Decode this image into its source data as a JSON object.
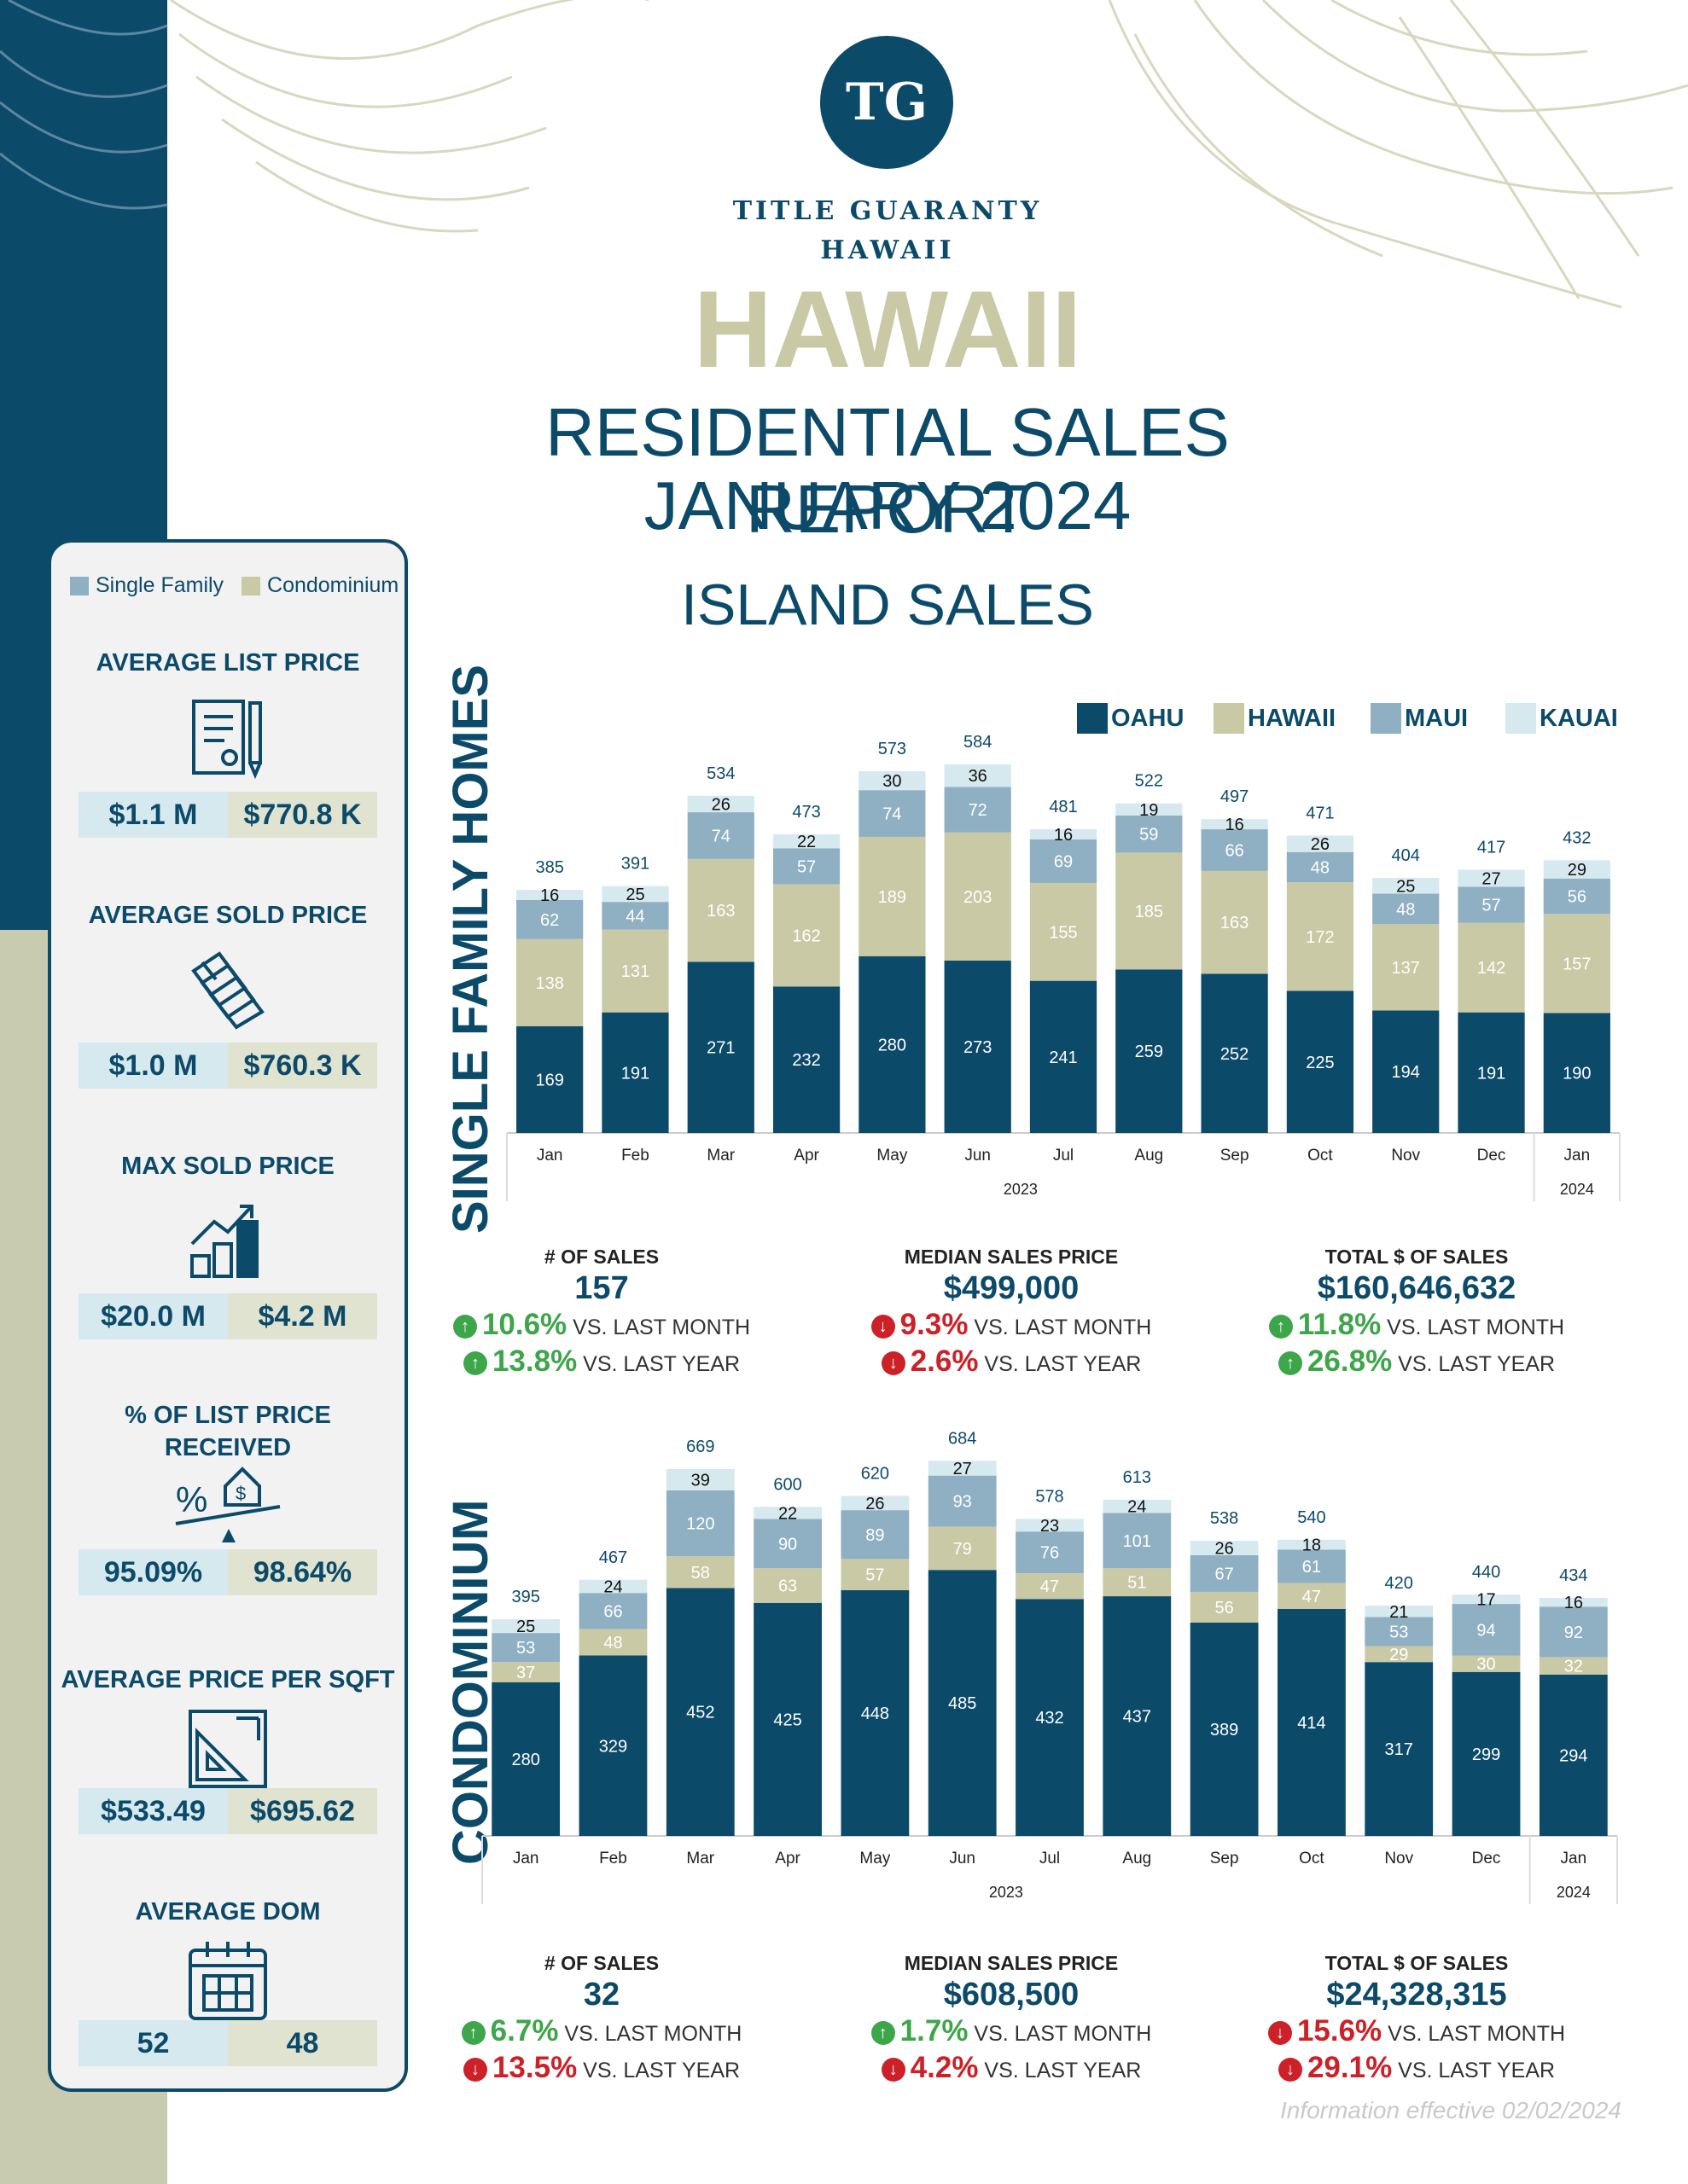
{
  "brand": {
    "logo_text": "TG",
    "line1": "TITLE GUARANTY",
    "line2": "HAWAII"
  },
  "title": "HAWAII",
  "subtitle1": "RESIDENTIAL SALES REPORT",
  "subtitle2": "JANUARY 2024",
  "section_title": "ISLAND SALES",
  "colors": {
    "oahu": "#0c4a6a",
    "hawaii": "#c9c9a6",
    "maui": "#8fb0c3",
    "kauai": "#d6e9ef",
    "single_family": "#8fb0c3",
    "condominium": "#c9c9a6",
    "up": "#3ea64a",
    "down": "#cc2128"
  },
  "sidebar": {
    "legend": [
      "Single Family",
      "Condominium"
    ],
    "metrics": [
      {
        "title": "AVERAGE LIST PRICE",
        "icon": "document-pen-icon",
        "sf": "$1.1 M",
        "condo": "$770.8 K"
      },
      {
        "title": "AVERAGE SOLD PRICE",
        "icon": "money-stack-icon",
        "sf": "$1.0 M",
        "condo": "$760.3 K"
      },
      {
        "title": "MAX SOLD PRICE",
        "icon": "bar-growth-icon",
        "sf": "$20.0 M",
        "condo": "$4.2 M"
      },
      {
        "title": "% OF LIST PRICE RECEIVED",
        "icon": "scale-house-icon",
        "sf": "95.09%",
        "condo": "98.64%"
      },
      {
        "title": "AVERAGE PRICE PER SQFT",
        "icon": "blueprint-ruler-icon",
        "sf": "$533.49",
        "condo": "$695.62"
      },
      {
        "title": "AVERAGE DOM",
        "icon": "calendar-icon",
        "sf": "52",
        "condo": "48"
      }
    ]
  },
  "chart_legend": [
    "OAHU",
    "HAWAII",
    "MAUI",
    "KAUAI"
  ],
  "chart_data": [
    {
      "type": "bar",
      "stacked": true,
      "title": "SINGLE FAMILY HOMES",
      "categories": [
        "Jan",
        "Feb",
        "Mar",
        "Apr",
        "May",
        "Jun",
        "Jul",
        "Aug",
        "Sep",
        "Oct",
        "Nov",
        "Dec",
        "Jan"
      ],
      "year_groups": [
        {
          "label": "2023",
          "count": 12
        },
        {
          "label": "2024",
          "count": 1
        }
      ],
      "series": [
        {
          "name": "OAHU",
          "values": [
            169,
            191,
            271,
            232,
            280,
            273,
            241,
            259,
            252,
            225,
            194,
            191,
            190
          ]
        },
        {
          "name": "HAWAII",
          "values": [
            138,
            131,
            163,
            162,
            189,
            203,
            155,
            185,
            163,
            172,
            137,
            142,
            157
          ]
        },
        {
          "name": "MAUI",
          "values": [
            62,
            44,
            74,
            57,
            74,
            72,
            69,
            59,
            66,
            48,
            48,
            57,
            56
          ]
        },
        {
          "name": "KAUAI",
          "values": [
            16,
            25,
            26,
            22,
            30,
            36,
            16,
            19,
            16,
            26,
            25,
            27,
            29
          ]
        }
      ],
      "totals": [
        385,
        391,
        534,
        473,
        573,
        584,
        481,
        522,
        497,
        471,
        404,
        417,
        432
      ],
      "ylim": [
        0,
        600
      ]
    },
    {
      "type": "bar",
      "stacked": true,
      "title": "CONDOMINIUM",
      "categories": [
        "Jan",
        "Feb",
        "Mar",
        "Apr",
        "May",
        "Jun",
        "Jul",
        "Aug",
        "Sep",
        "Oct",
        "Nov",
        "Dec",
        "Jan"
      ],
      "year_groups": [
        {
          "label": "2023",
          "count": 12
        },
        {
          "label": "2024",
          "count": 1
        }
      ],
      "series": [
        {
          "name": "OAHU",
          "values": [
            280,
            329,
            452,
            425,
            448,
            485,
            432,
            437,
            389,
            414,
            317,
            299,
            294
          ]
        },
        {
          "name": "HAWAII",
          "values": [
            37,
            48,
            58,
            63,
            57,
            79,
            47,
            51,
            56,
            47,
            29,
            30,
            32
          ]
        },
        {
          "name": "MAUI",
          "values": [
            53,
            66,
            120,
            90,
            89,
            93,
            76,
            101,
            67,
            61,
            53,
            94,
            92
          ]
        },
        {
          "name": "KAUAI",
          "values": [
            25,
            24,
            39,
            22,
            26,
            27,
            23,
            24,
            26,
            18,
            21,
            17,
            16
          ]
        }
      ],
      "totals": [
        395,
        467,
        669,
        600,
        620,
        684,
        578,
        613,
        538,
        540,
        420,
        440,
        434
      ],
      "ylim": [
        0,
        700
      ]
    }
  ],
  "sf_stats": [
    {
      "label": "# OF SALES",
      "value": "157",
      "month_pct": "10.6%",
      "month_dir": "up",
      "month_text": "VS. LAST MONTH",
      "year_pct": "13.8%",
      "year_dir": "up",
      "year_text": "VS. LAST YEAR"
    },
    {
      "label": "MEDIAN SALES PRICE",
      "value": "$499,000",
      "month_pct": "9.3%",
      "month_dir": "down",
      "month_text": "VS. LAST MONTH",
      "year_pct": "2.6%",
      "year_dir": "down",
      "year_text": "VS. LAST YEAR"
    },
    {
      "label": "TOTAL $ OF SALES",
      "value": "$160,646,632",
      "month_pct": "11.8%",
      "month_dir": "up",
      "month_text": "VS. LAST MONTH",
      "year_pct": "26.8%",
      "year_dir": "up",
      "year_text": "VS. LAST YEAR"
    }
  ],
  "condo_stats": [
    {
      "label": "# OF SALES",
      "value": "32",
      "month_pct": "6.7%",
      "month_dir": "up",
      "month_text": "VS. LAST MONTH",
      "year_pct": "13.5%",
      "year_dir": "down",
      "year_text": "VS. LAST YEAR"
    },
    {
      "label": "MEDIAN SALES PRICE",
      "value": "$608,500",
      "month_pct": "1.7%",
      "month_dir": "up",
      "month_text": "VS. LAST MONTH",
      "year_pct": "4.2%",
      "year_dir": "down",
      "year_text": "VS. LAST YEAR"
    },
    {
      "label": "TOTAL $ OF SALES",
      "value": "$24,328,315",
      "month_pct": "15.6%",
      "month_dir": "down",
      "month_text": "VS. LAST MONTH",
      "year_pct": "29.1%",
      "year_dir": "down",
      "year_text": "VS. LAST YEAR"
    }
  ],
  "footer": "Information effective 02/02/2024"
}
